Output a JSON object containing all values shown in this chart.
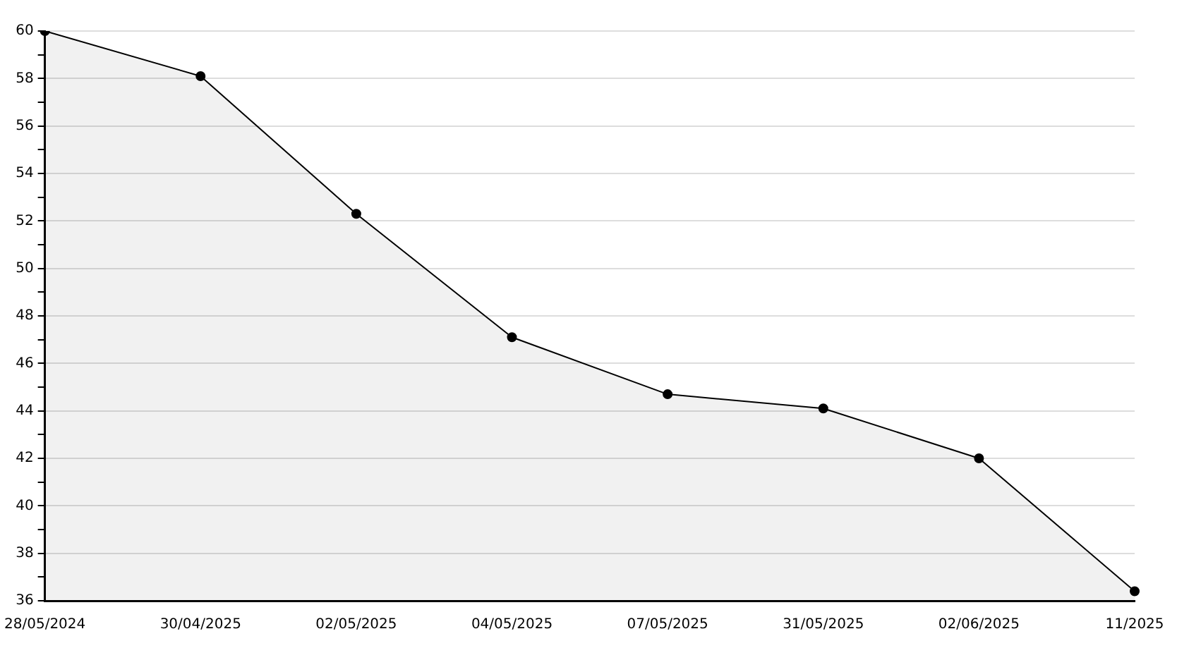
{
  "chart_data": {
    "type": "area",
    "categories": [
      "28/05/2024",
      "30/04/2025",
      "02/05/2025",
      "04/05/2025",
      "07/05/2025",
      "31/05/2025",
      "02/06/2025",
      "11/2025"
    ],
    "series": [
      {
        "color": "#000000",
        "values": [
          60,
          58.1,
          52.3,
          47.1,
          44.7,
          44.1,
          42.0,
          36.4
        ]
      }
    ],
    "ylim": [
      36,
      60
    ],
    "yticks": [
      36,
      {
        "value": 37,
        "label": null
      },
      38,
      {
        "value": 39,
        "label": null
      },
      40,
      {
        "value": 41,
        "label": null
      },
      42,
      {
        "value": 43,
        "label": null
      },
      44,
      {
        "value": 45,
        "label": null
      },
      46,
      {
        "value": 47,
        "label": null
      },
      48,
      {
        "value": 49,
        "label": null
      },
      50,
      {
        "value": 51,
        "label": null
      },
      52,
      {
        "value": 53,
        "label": null
      },
      54,
      {
        "value": 55,
        "label": null
      },
      56,
      {
        "value": 57,
        "label": null
      },
      58,
      {
        "value": 59,
        "label": null
      },
      60
    ],
    "grid": "y",
    "legend": false,
    "marker": "circle",
    "line_style": "solid"
  }
}
